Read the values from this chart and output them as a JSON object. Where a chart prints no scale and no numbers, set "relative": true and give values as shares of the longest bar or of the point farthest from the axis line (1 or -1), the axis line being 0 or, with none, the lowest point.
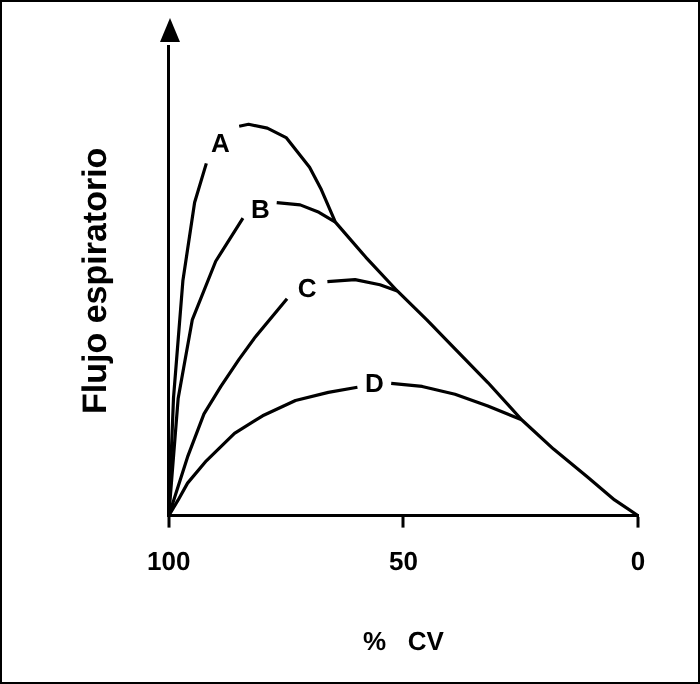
{
  "chart_data": {
    "type": "line",
    "relative": true,
    "xlabel": "%   CV",
    "ylabel": "Flujo espiratorio",
    "xlim": [
      100,
      0
    ],
    "xticks": [
      100,
      50,
      0
    ],
    "grid": false,
    "legend": false,
    "marker": "none",
    "line_style": "solid",
    "series": [
      {
        "name": "A",
        "color": "#000000",
        "x": [
          100,
          99,
          97,
          94.5,
          92,
          89,
          85,
          83,
          79,
          75,
          70,
          67.5,
          64.5,
          58,
          51.3,
          45,
          39,
          32,
          24.8,
          18,
          10.7,
          5,
          0
        ],
        "values": [
          0,
          0.3,
          0.6,
          0.8,
          0.9,
          null,
          0.995,
          1,
          0.99,
          0.966,
          0.89,
          0.833,
          0.75,
          0.66,
          0.574,
          0.5,
          0.426,
          0.34,
          0.245,
          0.17,
          0.098,
          0.04,
          0
        ]
      },
      {
        "name": "B",
        "color": "#000000",
        "x": [
          100,
          98,
          95,
          90,
          84.2,
          80.5,
          77,
          72,
          68,
          64.5
        ],
        "values": [
          0,
          0.3,
          0.5,
          0.65,
          0.76,
          null,
          0.8,
          0.794,
          0.775,
          0.75
        ]
      },
      {
        "name": "C",
        "color": "#000000",
        "x": [
          100,
          96,
          92.5,
          88.9,
          85,
          81.6,
          74.8,
          70.5,
          66.2,
          60.3,
          55,
          51.3
        ],
        "values": [
          0,
          0.15,
          0.26,
          0.33,
          0.4,
          0.456,
          0.554,
          null,
          0.598,
          0.603,
          0.59,
          0.574
        ]
      },
      {
        "name": "D",
        "color": "#000000",
        "x": [
          100,
          98,
          96,
          92,
          86,
          80,
          73,
          66,
          59.8,
          56.2,
          52.6,
          46,
          39,
          32,
          24.8
        ],
        "values": [
          0,
          0.04,
          0.083,
          0.14,
          0.21,
          0.255,
          0.294,
          0.315,
          0.328,
          null,
          0.338,
          0.33,
          0.31,
          0.28,
          0.245
        ]
      }
    ]
  }
}
